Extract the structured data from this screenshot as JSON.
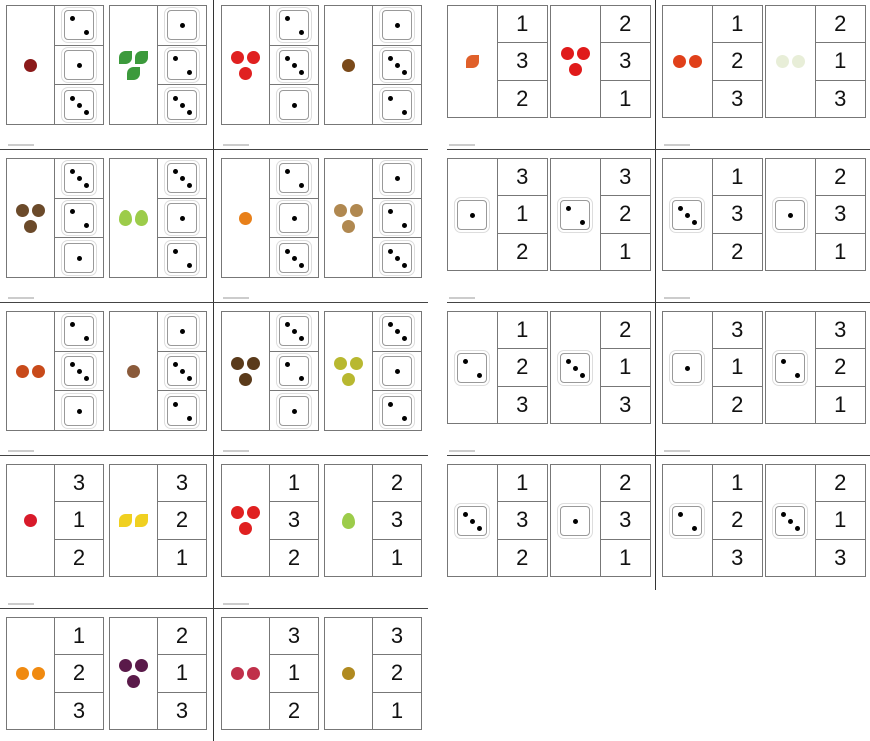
{
  "colors": {
    "border": "#777777",
    "pip": "#000000"
  },
  "tiles": [
    {
      "col": 0,
      "row": 0,
      "type": "picture-dice",
      "cards": [
        {
          "item": "chestnut",
          "count": 1,
          "color": "#8b1a1a",
          "options": [
            2,
            1,
            3
          ]
        },
        {
          "item": "leaf",
          "count": 3,
          "color": "#3c9a3c",
          "options": [
            1,
            2,
            3
          ]
        }
      ]
    },
    {
      "col": 1,
      "row": 0,
      "type": "picture-dice",
      "cards": [
        {
          "item": "apple",
          "count": 3,
          "color": "#e02020",
          "options": [
            2,
            3,
            1
          ]
        },
        {
          "item": "acorn",
          "count": 1,
          "color": "#7a4a1a",
          "options": [
            1,
            3,
            2
          ]
        }
      ]
    },
    {
      "col": 0,
      "row": 1,
      "type": "picture-dice",
      "cards": [
        {
          "item": "hedgehog",
          "count": 3,
          "color": "#6b4a2a",
          "options": [
            3,
            2,
            1
          ]
        },
        {
          "item": "pear",
          "count": 2,
          "color": "#9ccc4a",
          "options": [
            3,
            1,
            2
          ]
        }
      ]
    },
    {
      "col": 1,
      "row": 1,
      "type": "picture-dice",
      "cards": [
        {
          "item": "pumpkin",
          "count": 1,
          "color": "#e8801a",
          "options": [
            2,
            1,
            3
          ]
        },
        {
          "item": "potato",
          "count": 3,
          "color": "#b08850",
          "options": [
            1,
            2,
            3
          ]
        }
      ]
    },
    {
      "col": 0,
      "row": 2,
      "type": "picture-dice",
      "cards": [
        {
          "item": "kite",
          "count": 2,
          "color": "#c84a1a",
          "options": [
            2,
            3,
            1
          ]
        },
        {
          "item": "tree",
          "count": 1,
          "color": "#8a5a3a",
          "options": [
            1,
            3,
            2
          ]
        }
      ]
    },
    {
      "col": 1,
      "row": 2,
      "type": "picture-dice",
      "cards": [
        {
          "item": "pinecone",
          "count": 3,
          "color": "#5a3a1a",
          "options": [
            3,
            2,
            1
          ]
        },
        {
          "item": "corn",
          "count": 3,
          "color": "#b8b830",
          "options": [
            3,
            1,
            2
          ]
        }
      ]
    },
    {
      "col": 0,
      "row": 3,
      "type": "picture-number",
      "cards": [
        {
          "item": "strawberry",
          "count": 1,
          "color": "#d81a2a",
          "options": [
            3,
            1,
            2
          ]
        },
        {
          "item": "banana",
          "count": 2,
          "color": "#f0d020",
          "options": [
            3,
            2,
            1
          ]
        }
      ]
    },
    {
      "col": 1,
      "row": 3,
      "type": "picture-number",
      "cards": [
        {
          "item": "apple",
          "count": 3,
          "color": "#e02020",
          "options": [
            1,
            3,
            2
          ]
        },
        {
          "item": "pear",
          "count": 1,
          "color": "#9ccc4a",
          "options": [
            2,
            3,
            1
          ]
        }
      ]
    },
    {
      "col": 0,
      "row": 4,
      "type": "picture-number",
      "cards": [
        {
          "item": "orange",
          "count": 2,
          "color": "#f08a10",
          "options": [
            1,
            2,
            3
          ]
        },
        {
          "item": "plum",
          "count": 3,
          "color": "#5a1a4a",
          "options": [
            2,
            1,
            3
          ]
        }
      ]
    },
    {
      "col": 1,
      "row": 4,
      "type": "picture-number",
      "cards": [
        {
          "item": "raspberry",
          "count": 2,
          "color": "#c0304a",
          "options": [
            3,
            1,
            2
          ]
        },
        {
          "item": "pineapple",
          "count": 1,
          "color": "#b08a20",
          "options": [
            3,
            2,
            1
          ]
        }
      ]
    },
    {
      "col": 2,
      "row": 0,
      "type": "picture-number",
      "cards": [
        {
          "item": "carrot",
          "count": 1,
          "color": "#e0602a",
          "options": [
            1,
            3,
            2
          ]
        },
        {
          "item": "pepper",
          "count": 3,
          "color": "#e01a1a",
          "options": [
            2,
            3,
            1
          ]
        }
      ]
    },
    {
      "col": 3,
      "row": 0,
      "type": "picture-number",
      "cards": [
        {
          "item": "tomato",
          "count": 2,
          "color": "#e0401a",
          "options": [
            1,
            2,
            3
          ]
        },
        {
          "item": "cauliflower",
          "count": 2,
          "color": "#e8eed8",
          "options": [
            2,
            1,
            3
          ]
        }
      ]
    },
    {
      "col": 2,
      "row": 1,
      "type": "dice-number",
      "cards": [
        {
          "die": 1,
          "options": [
            3,
            1,
            2
          ]
        },
        {
          "die": 2,
          "options": [
            3,
            2,
            1
          ]
        }
      ]
    },
    {
      "col": 3,
      "row": 1,
      "type": "dice-number",
      "cards": [
        {
          "die": 3,
          "options": [
            1,
            3,
            2
          ]
        },
        {
          "die": 1,
          "options": [
            2,
            3,
            1
          ]
        }
      ]
    },
    {
      "col": 2,
      "row": 2,
      "type": "dice-number",
      "cards": [
        {
          "die": 2,
          "options": [
            1,
            2,
            3
          ]
        },
        {
          "die": 3,
          "options": [
            2,
            1,
            3
          ]
        }
      ]
    },
    {
      "col": 3,
      "row": 2,
      "type": "dice-number",
      "cards": [
        {
          "die": 1,
          "options": [
            3,
            1,
            2
          ]
        },
        {
          "die": 2,
          "options": [
            3,
            2,
            1
          ]
        }
      ]
    },
    {
      "col": 2,
      "row": 3,
      "type": "dice-number",
      "cards": [
        {
          "die": 3,
          "options": [
            1,
            3,
            2
          ]
        },
        {
          "die": 1,
          "options": [
            2,
            3,
            1
          ]
        }
      ]
    },
    {
      "col": 3,
      "row": 3,
      "type": "dice-number",
      "cards": [
        {
          "die": 2,
          "options": [
            1,
            2,
            3
          ]
        },
        {
          "die": 3,
          "options": [
            2,
            1,
            3
          ]
        }
      ]
    }
  ]
}
